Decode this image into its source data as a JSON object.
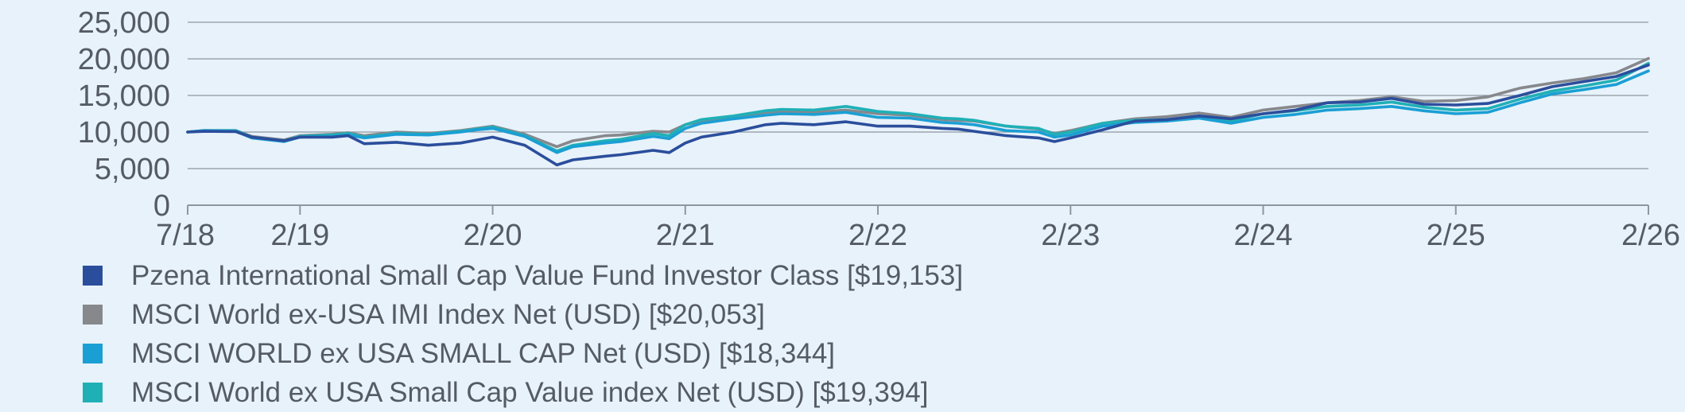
{
  "chart_data": {
    "type": "line",
    "title": "",
    "xlabel": "",
    "ylabel": "",
    "ylim": [
      0,
      25000
    ],
    "y_ticks": [
      0,
      5000,
      10000,
      15000,
      20000,
      25000
    ],
    "y_tick_labels": [
      "0",
      "5,000",
      "10,000",
      "15,000",
      "20,000",
      "25,000"
    ],
    "x_ticks": [
      "2018-07",
      "2019-02",
      "2020-02",
      "2021-02",
      "2022-02",
      "2023-02",
      "2024-02",
      "2025-02",
      "2026-02"
    ],
    "x_tick_labels": [
      "7/18",
      "2/19",
      "2/20",
      "2/21",
      "2/22",
      "2/23",
      "2/24",
      "2/25",
      "2/26"
    ],
    "grid": true,
    "legend_position": "bottom",
    "series": [
      {
        "name": "Pzena International Small Cap Value Fund Investor Class [$19,153]",
        "color": "#2b4e9c",
        "points": [
          [
            "2018-07",
            10000
          ],
          [
            "2018-08",
            10100
          ],
          [
            "2018-10",
            10050
          ],
          [
            "2018-11",
            9300
          ],
          [
            "2019-01",
            8800
          ],
          [
            "2019-02",
            9300
          ],
          [
            "2019-04",
            9300
          ],
          [
            "2019-05",
            9500
          ],
          [
            "2019-06",
            8400
          ],
          [
            "2019-08",
            8600
          ],
          [
            "2019-10",
            8200
          ],
          [
            "2019-12",
            8500
          ],
          [
            "2020-01",
            8900
          ],
          [
            "2020-02",
            9300
          ],
          [
            "2020-04",
            8200
          ],
          [
            "2020-06",
            5500
          ],
          [
            "2020-07",
            6200
          ],
          [
            "2020-09",
            6700
          ],
          [
            "2020-10",
            6900
          ],
          [
            "2020-12",
            7500
          ],
          [
            "2021-01",
            7200
          ],
          [
            "2021-02",
            8500
          ],
          [
            "2021-03",
            9300
          ],
          [
            "2021-05",
            10000
          ],
          [
            "2021-07",
            11000
          ],
          [
            "2021-08",
            11200
          ],
          [
            "2021-10",
            11000
          ],
          [
            "2021-12",
            11400
          ],
          [
            "2022-02",
            10800
          ],
          [
            "2022-04",
            10800
          ],
          [
            "2022-06",
            10500
          ],
          [
            "2022-07",
            10400
          ],
          [
            "2022-08",
            10100
          ],
          [
            "2022-10",
            9500
          ],
          [
            "2022-12",
            9200
          ],
          [
            "2023-01",
            8700
          ],
          [
            "2023-02",
            9200
          ],
          [
            "2023-04",
            10300
          ],
          [
            "2023-06",
            11500
          ],
          [
            "2023-08",
            11700
          ],
          [
            "2023-10",
            12200
          ],
          [
            "2023-12",
            11800
          ],
          [
            "2024-02",
            12500
          ],
          [
            "2024-04",
            13000
          ],
          [
            "2024-06",
            14000
          ],
          [
            "2024-08",
            14100
          ],
          [
            "2024-10",
            14600
          ],
          [
            "2024-12",
            13800
          ],
          [
            "2025-02",
            13700
          ],
          [
            "2025-04",
            13900
          ],
          [
            "2025-06",
            15000
          ],
          [
            "2025-08",
            16200
          ],
          [
            "2025-10",
            16900
          ],
          [
            "2025-12",
            17600
          ],
          [
            "2026-02",
            19153
          ]
        ]
      },
      {
        "name": "MSCI World ex-USA IMI Index Net (USD) [$20,053]",
        "color": "#86888c",
        "points": [
          [
            "2018-07",
            10000
          ],
          [
            "2018-08",
            10200
          ],
          [
            "2018-10",
            10200
          ],
          [
            "2018-11",
            9400
          ],
          [
            "2019-01",
            8900
          ],
          [
            "2019-02",
            9500
          ],
          [
            "2019-04",
            9700
          ],
          [
            "2019-05",
            9900
          ],
          [
            "2019-06",
            9500
          ],
          [
            "2019-08",
            10000
          ],
          [
            "2019-10",
            9800
          ],
          [
            "2019-12",
            10200
          ],
          [
            "2020-01",
            10500
          ],
          [
            "2020-02",
            10800
          ],
          [
            "2020-04",
            9700
          ],
          [
            "2020-06",
            8000
          ],
          [
            "2020-07",
            8800
          ],
          [
            "2020-09",
            9500
          ],
          [
            "2020-10",
            9600
          ],
          [
            "2020-12",
            10100
          ],
          [
            "2021-01",
            10000
          ],
          [
            "2021-02",
            11000
          ],
          [
            "2021-03",
            11500
          ],
          [
            "2021-05",
            12000
          ],
          [
            "2021-07",
            12700
          ],
          [
            "2021-08",
            12800
          ],
          [
            "2021-10",
            12700
          ],
          [
            "2021-12",
            13000
          ],
          [
            "2022-02",
            12500
          ],
          [
            "2022-04",
            12300
          ],
          [
            "2022-06",
            11700
          ],
          [
            "2022-07",
            11600
          ],
          [
            "2022-08",
            11500
          ],
          [
            "2022-10",
            10800
          ],
          [
            "2022-12",
            10400
          ],
          [
            "2023-01",
            9800
          ],
          [
            "2023-02",
            10200
          ],
          [
            "2023-04",
            11200
          ],
          [
            "2023-06",
            11800
          ],
          [
            "2023-08",
            12100
          ],
          [
            "2023-10",
            12600
          ],
          [
            "2023-12",
            12000
          ],
          [
            "2024-02",
            13000
          ],
          [
            "2024-04",
            13500
          ],
          [
            "2024-06",
            14000
          ],
          [
            "2024-08",
            14300
          ],
          [
            "2024-10",
            14800
          ],
          [
            "2024-12",
            14200
          ],
          [
            "2025-02",
            14300
          ],
          [
            "2025-04",
            14800
          ],
          [
            "2025-06",
            16000
          ],
          [
            "2025-08",
            16700
          ],
          [
            "2025-10",
            17300
          ],
          [
            "2025-12",
            18100
          ],
          [
            "2026-02",
            20053
          ]
        ]
      },
      {
        "name": "MSCI WORLD ex USA SMALL CAP Net (USD) [$18,344]",
        "color": "#1a9fd4",
        "points": [
          [
            "2018-07",
            10000
          ],
          [
            "2018-08",
            10200
          ],
          [
            "2018-10",
            10100
          ],
          [
            "2018-11",
            9200
          ],
          [
            "2019-01",
            8700
          ],
          [
            "2019-02",
            9300
          ],
          [
            "2019-04",
            9400
          ],
          [
            "2019-05",
            9600
          ],
          [
            "2019-06",
            9200
          ],
          [
            "2019-08",
            9700
          ],
          [
            "2019-10",
            9600
          ],
          [
            "2019-12",
            10000
          ],
          [
            "2020-01",
            10300
          ],
          [
            "2020-02",
            10500
          ],
          [
            "2020-04",
            9400
          ],
          [
            "2020-06",
            7200
          ],
          [
            "2020-07",
            8000
          ],
          [
            "2020-09",
            8500
          ],
          [
            "2020-10",
            8700
          ],
          [
            "2020-12",
            9400
          ],
          [
            "2021-01",
            9100
          ],
          [
            "2021-02",
            10500
          ],
          [
            "2021-03",
            11200
          ],
          [
            "2021-05",
            11800
          ],
          [
            "2021-07",
            12300
          ],
          [
            "2021-08",
            12500
          ],
          [
            "2021-10",
            12400
          ],
          [
            "2021-12",
            12700
          ],
          [
            "2022-02",
            12000
          ],
          [
            "2022-04",
            11900
          ],
          [
            "2022-06",
            11300
          ],
          [
            "2022-07",
            11200
          ],
          [
            "2022-08",
            11000
          ],
          [
            "2022-10",
            10200
          ],
          [
            "2022-12",
            10000
          ],
          [
            "2023-01",
            9300
          ],
          [
            "2023-02",
            9600
          ],
          [
            "2023-04",
            10800
          ],
          [
            "2023-06",
            11300
          ],
          [
            "2023-08",
            11500
          ],
          [
            "2023-10",
            11900
          ],
          [
            "2023-12",
            11200
          ],
          [
            "2024-02",
            12000
          ],
          [
            "2024-04",
            12400
          ],
          [
            "2024-06",
            13000
          ],
          [
            "2024-08",
            13200
          ],
          [
            "2024-10",
            13500
          ],
          [
            "2024-12",
            12900
          ],
          [
            "2025-02",
            12500
          ],
          [
            "2025-04",
            12700
          ],
          [
            "2025-06",
            14000
          ],
          [
            "2025-08",
            15200
          ],
          [
            "2025-10",
            15800
          ],
          [
            "2025-12",
            16500
          ],
          [
            "2026-02",
            18344
          ]
        ]
      },
      {
        "name": "MSCI World ex USA Small Cap Value index Net (USD) [$19,394]",
        "color": "#1fb0b6",
        "points": [
          [
            "2018-07",
            10000
          ],
          [
            "2018-08",
            10200
          ],
          [
            "2018-10",
            10200
          ],
          [
            "2018-11",
            9300
          ],
          [
            "2019-01",
            8800
          ],
          [
            "2019-02",
            9400
          ],
          [
            "2019-04",
            9600
          ],
          [
            "2019-05",
            9800
          ],
          [
            "2019-06",
            9300
          ],
          [
            "2019-08",
            9800
          ],
          [
            "2019-10",
            9700
          ],
          [
            "2019-12",
            10100
          ],
          [
            "2020-01",
            10400
          ],
          [
            "2020-02",
            10700
          ],
          [
            "2020-04",
            9500
          ],
          [
            "2020-06",
            7400
          ],
          [
            "2020-07",
            8200
          ],
          [
            "2020-09",
            8800
          ],
          [
            "2020-10",
            9000
          ],
          [
            "2020-12",
            9800
          ],
          [
            "2021-01",
            9500
          ],
          [
            "2021-02",
            11000
          ],
          [
            "2021-03",
            11700
          ],
          [
            "2021-05",
            12200
          ],
          [
            "2021-07",
            12900
          ],
          [
            "2021-08",
            13100
          ],
          [
            "2021-10",
            13000
          ],
          [
            "2021-12",
            13500
          ],
          [
            "2022-02",
            12800
          ],
          [
            "2022-04",
            12500
          ],
          [
            "2022-06",
            11900
          ],
          [
            "2022-07",
            11800
          ],
          [
            "2022-08",
            11600
          ],
          [
            "2022-10",
            10800
          ],
          [
            "2022-12",
            10500
          ],
          [
            "2023-01",
            9700
          ],
          [
            "2023-02",
            10000
          ],
          [
            "2023-04",
            11200
          ],
          [
            "2023-06",
            11600
          ],
          [
            "2023-08",
            11700
          ],
          [
            "2023-10",
            12200
          ],
          [
            "2023-12",
            11500
          ],
          [
            "2024-02",
            12500
          ],
          [
            "2024-04",
            12900
          ],
          [
            "2024-06",
            13500
          ],
          [
            "2024-08",
            13700
          ],
          [
            "2024-10",
            14100
          ],
          [
            "2024-12",
            13400
          ],
          [
            "2025-02",
            13000
          ],
          [
            "2025-04",
            13200
          ],
          [
            "2025-06",
            14500
          ],
          [
            "2025-08",
            15600
          ],
          [
            "2025-10",
            16300
          ],
          [
            "2025-12",
            17100
          ],
          [
            "2026-02",
            19394
          ]
        ]
      }
    ]
  }
}
